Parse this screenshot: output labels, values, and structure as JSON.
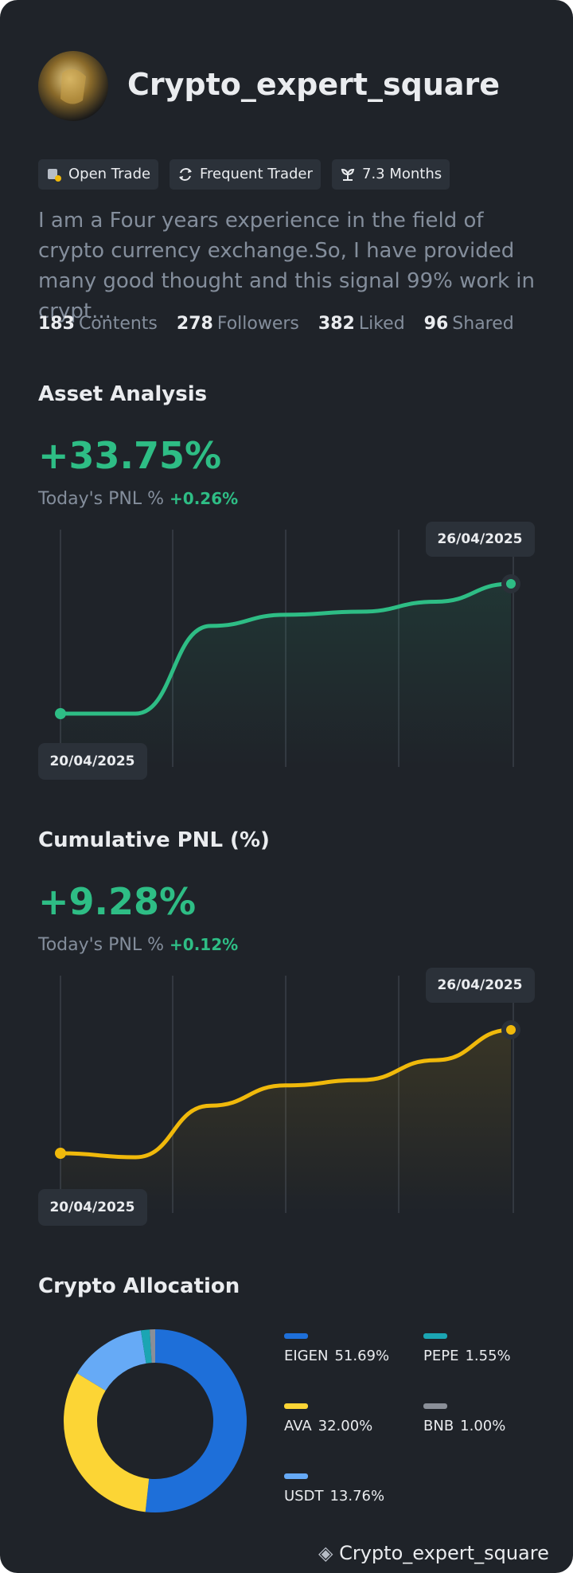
{
  "profile": {
    "name": "Crypto_expert_square",
    "tags": [
      "Open Trade",
      "Frequent Trader",
      "7.3 Months"
    ],
    "bio": "I am a Four years experience in the field of crypto currency exchange.So, I have provided many good thought and this signal 99% work in crypt...",
    "stats": [
      {
        "value": 183,
        "label": "Contents"
      },
      {
        "value": 278,
        "label": "Followers"
      },
      {
        "value": 382,
        "label": "Liked"
      },
      {
        "value": 96,
        "label": "Shared"
      }
    ]
  },
  "chart_data": [
    {
      "type": "line",
      "title": "Asset Analysis",
      "headline": "+33.75%",
      "subtitle": "Today's PNL %",
      "subtitle_value": "+0.26%",
      "categories": [
        "20/04/2025",
        null,
        null,
        null,
        null,
        null,
        "26/04/2025"
      ],
      "series": [
        {
          "color": "#2ebd85",
          "values": [
            0,
            0,
            22.8,
            25.7,
            26.5,
            29.1,
            33.75
          ]
        }
      ]
    },
    {
      "type": "line",
      "title": "Cumulative PNL (%)",
      "headline": "+9.28%",
      "subtitle": "Today's PNL %",
      "subtitle_value": "+0.12%",
      "categories": [
        "20/04/2025",
        null,
        null,
        null,
        null,
        null,
        "26/04/2025"
      ],
      "series": [
        {
          "color": "#f0b90b",
          "values": [
            0,
            -0.3,
            3.58,
            5.1,
            5.5,
            7.0,
            9.28
          ]
        }
      ]
    },
    {
      "type": "pie",
      "title": "Crypto Allocation",
      "donut": true,
      "categories": [
        "EIGEN",
        "AVA",
        "USDT",
        "PEPE",
        "BNB"
      ],
      "values": [
        51.69,
        32.0,
        13.76,
        1.55,
        1.0
      ],
      "value_labels": [
        "51.69%",
        "32.00%",
        "13.76%",
        "1.55%",
        "1.00%"
      ],
      "colors": [
        "#1e6fd9",
        "#fcd535",
        "#66aaf6",
        "#1ba5b3",
        "#8a8f98"
      ]
    }
  ],
  "watermark": "Crypto_expert_square"
}
